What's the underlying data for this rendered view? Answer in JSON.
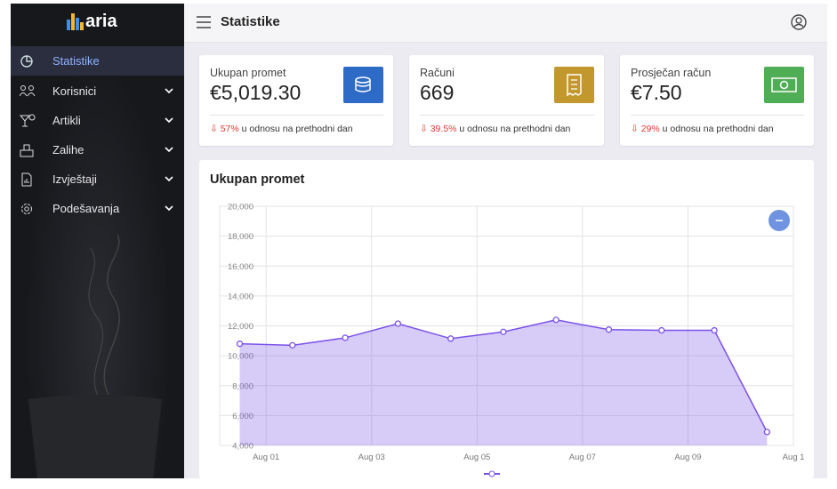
{
  "sidebar": {
    "logo": "aria",
    "menu": [
      "Statistike",
      "Korisnici",
      "Artikli",
      "Zalihe",
      "Izvještaji",
      "Podešavanja"
    ]
  },
  "header": {
    "title": "Statistike"
  },
  "cards": [
    {
      "title": "Ukupan promet",
      "value": "€5,019.30",
      "change": "57%",
      "note": "u odnosu na prethodni dan"
    },
    {
      "title": "Računi",
      "value": "669",
      "change": "39.5%",
      "note": "u odnosu na prethodni dan"
    },
    {
      "title": "Prosječan račun",
      "value": "€7.50",
      "change": "29%",
      "note": "u odnosu na prethodni dan"
    }
  ],
  "chart_data": {
    "type": "line",
    "title": "Ukupan promet",
    "x": [
      0.5,
      1.5,
      2.5,
      3.5,
      4.5,
      5.5,
      6.5,
      7.5,
      8.5,
      9.5,
      10.5
    ],
    "series": [
      {
        "color": "#7b52e8",
        "values": [
          10800,
          10700,
          11200,
          12150,
          11150,
          11600,
          12400,
          11750,
          11700,
          11700,
          4900
        ]
      }
    ],
    "xlim": [
      0.12,
      11
    ],
    "ylim": [
      4000,
      20000
    ],
    "xticks": [
      {
        "value": 1,
        "label": "Aug 01"
      },
      {
        "value": 3,
        "label": "Aug 03"
      },
      {
        "value": 5,
        "label": "Aug 05"
      },
      {
        "value": 7,
        "label": "Aug 07"
      },
      {
        "value": 9,
        "label": "Aug 09"
      },
      {
        "value": 11,
        "label": "Aug 1"
      }
    ],
    "yticks": [
      {
        "value": 4000,
        "label": "4,000"
      },
      {
        "value": 6000,
        "label": "6,000"
      },
      {
        "value": 8000,
        "label": "8,000"
      },
      {
        "value": 10000,
        "label": "10,000"
      },
      {
        "value": 12000,
        "label": "12,000"
      },
      {
        "value": 14000,
        "label": "14,000"
      },
      {
        "value": 16000,
        "label": "16,000"
      },
      {
        "value": 18000,
        "label": "18,000"
      },
      {
        "value": 20000,
        "label": "20,000"
      }
    ],
    "grid": true,
    "area": true
  }
}
